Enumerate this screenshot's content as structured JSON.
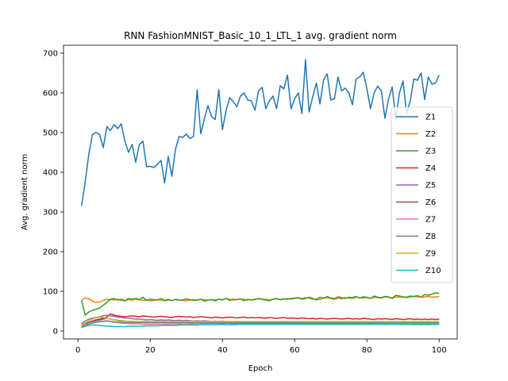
{
  "chart_data": {
    "type": "line",
    "title": "RNN FashionMNIST_Basic_10_1_LTL_1 avg. gradient norm",
    "xlabel": "Epoch",
    "ylabel": "Avg. gradient norm",
    "xlim": [
      -4,
      105
    ],
    "ylim": [
      -20,
      720
    ],
    "xticks": [
      0,
      20,
      40,
      60,
      80,
      100
    ],
    "yticks": [
      0,
      100,
      200,
      300,
      400,
      500,
      600,
      700
    ],
    "grid": false,
    "legend_position": "center-right",
    "x": [
      1,
      2,
      3,
      4,
      5,
      6,
      7,
      8,
      9,
      10,
      11,
      12,
      13,
      14,
      15,
      16,
      17,
      18,
      19,
      20,
      21,
      22,
      23,
      24,
      25,
      26,
      27,
      28,
      29,
      30,
      31,
      32,
      33,
      34,
      35,
      36,
      37,
      38,
      39,
      40,
      41,
      42,
      43,
      44,
      45,
      46,
      47,
      48,
      49,
      50,
      51,
      52,
      53,
      54,
      55,
      56,
      57,
      58,
      59,
      60,
      61,
      62,
      63,
      64,
      65,
      66,
      67,
      68,
      69,
      70,
      71,
      72,
      73,
      74,
      75,
      76,
      77,
      78,
      79,
      80,
      81,
      82,
      83,
      84,
      85,
      86,
      87,
      88,
      89,
      90,
      91,
      92,
      93,
      94,
      95,
      96,
      97,
      98,
      99,
      100
    ],
    "series": [
      {
        "name": "Z1",
        "color": "#1f77b4",
        "values": [
          315,
          375,
          445,
          495,
          500,
          495,
          462,
          515,
          505,
          520,
          510,
          522,
          478,
          450,
          470,
          425,
          470,
          478,
          414,
          415,
          412,
          420,
          430,
          373,
          440,
          390,
          458,
          490,
          488,
          496,
          485,
          490,
          608,
          497,
          535,
          568,
          540,
          533,
          608,
          507,
          555,
          588,
          578,
          565,
          592,
          600,
          582,
          580,
          556,
          605,
          614,
          560,
          580,
          592,
          560,
          618,
          610,
          645,
          560,
          585,
          600,
          548,
          684,
          552,
          590,
          625,
          572,
          632,
          648,
          582,
          585,
          640,
          605,
          612,
          600,
          570,
          635,
          640,
          652,
          610,
          560,
          600,
          617,
          605,
          536,
          585,
          615,
          533,
          600,
          630,
          548,
          580,
          635,
          632,
          650,
          583,
          640,
          622,
          625,
          645
        ]
      },
      {
        "name": "Z2",
        "color": "#ff7f0e",
        "values": [
          78,
          83,
          82,
          75,
          72,
          73,
          77,
          80,
          79,
          78,
          80,
          77,
          76,
          79,
          78,
          80,
          79,
          77,
          78,
          76,
          77,
          79,
          78,
          76,
          78,
          77,
          79,
          78,
          77,
          76,
          78,
          79,
          78,
          80,
          79,
          78,
          79,
          78,
          80,
          79,
          82,
          80,
          78,
          79,
          81,
          80,
          78,
          79,
          80,
          81,
          80,
          80,
          78,
          80,
          81,
          79,
          80,
          82,
          80,
          82,
          83,
          82,
          84,
          83,
          80,
          81,
          79,
          84,
          83,
          82,
          80,
          83,
          81,
          84,
          83,
          82,
          85,
          84,
          83,
          84,
          82,
          85,
          84,
          83,
          86,
          85,
          84,
          85,
          86,
          85,
          84,
          86,
          87,
          86,
          85,
          86,
          87,
          85,
          86,
          87
        ]
      },
      {
        "name": "Z3",
        "color": "#2ca02c",
        "values": [
          78,
          40,
          48,
          52,
          55,
          58,
          65,
          72,
          80,
          82,
          78,
          80,
          76,
          82,
          80,
          82,
          79,
          85,
          77,
          80,
          79,
          78,
          82,
          77,
          80,
          76,
          80,
          78,
          78,
          81,
          79,
          77,
          78,
          80,
          75,
          78,
          79,
          76,
          80,
          78,
          82,
          77,
          80,
          79,
          81,
          76,
          80,
          78,
          79,
          82,
          80,
          78,
          76,
          80,
          82,
          79,
          81,
          80,
          82,
          83,
          84,
          80,
          82,
          85,
          82,
          78,
          85,
          82,
          87,
          83,
          82,
          86,
          84,
          82,
          85,
          84,
          87,
          83,
          86,
          85,
          82,
          88,
          85,
          84,
          87,
          86,
          82,
          90,
          88,
          86,
          85,
          88,
          87,
          89,
          85,
          92,
          90,
          93,
          96,
          95
        ]
      },
      {
        "name": "Z4",
        "color": "#d62728",
        "values": [
          15,
          18,
          22,
          25,
          28,
          30,
          32,
          35,
          43,
          40,
          38,
          37,
          36,
          37,
          38,
          37,
          36,
          38,
          37,
          36,
          35,
          36,
          37,
          36,
          35,
          34,
          36,
          37,
          36,
          35,
          36,
          34,
          35,
          36,
          35,
          34,
          33,
          35,
          34,
          33,
          34,
          35,
          34,
          33,
          34,
          35,
          33,
          34,
          33,
          34,
          33,
          32,
          34,
          33,
          32,
          33,
          34,
          32,
          33,
          32,
          31,
          33,
          32,
          31,
          32,
          30,
          32,
          31,
          30,
          31,
          32,
          31,
          30,
          31,
          32,
          30,
          31,
          30,
          32,
          31,
          30,
          29,
          31,
          30,
          31,
          30,
          29,
          31,
          30,
          29,
          30,
          31,
          29,
          30,
          29,
          30,
          29,
          30,
          29,
          30
        ]
      },
      {
        "name": "Z5",
        "color": "#9467bd",
        "values": [
          18,
          25,
          30,
          32,
          34,
          36,
          38,
          40,
          38,
          37,
          35,
          34,
          33,
          32,
          31,
          30,
          30,
          29,
          28,
          29,
          28,
          27,
          28,
          27,
          28,
          27,
          26,
          27,
          26,
          27,
          26,
          25,
          26,
          25,
          26,
          25,
          24,
          25,
          24,
          25,
          24,
          24,
          23,
          24,
          23,
          24,
          23,
          22,
          23,
          22,
          23,
          22,
          22,
          21,
          22,
          21,
          22,
          21,
          20,
          21,
          20,
          21,
          20,
          20,
          19,
          20,
          19,
          20,
          19,
          20,
          19,
          19,
          18,
          19,
          18,
          19,
          18,
          19,
          18,
          18,
          19,
          18,
          17,
          18,
          17,
          18,
          17,
          18,
          17,
          17,
          18,
          17,
          16,
          17,
          16,
          17,
          16,
          17,
          16,
          17
        ]
      },
      {
        "name": "Z6",
        "color": "#8c564b",
        "values": [
          15,
          20,
          22,
          24,
          26,
          28,
          30,
          32,
          30,
          28,
          27,
          26,
          25,
          24,
          24,
          23,
          23,
          22,
          22,
          22,
          21,
          21,
          22,
          21,
          21,
          21,
          21,
          20,
          21,
          21,
          20,
          20,
          21,
          20,
          20,
          20,
          20,
          20,
          20,
          19,
          20,
          20,
          19,
          20,
          19,
          19,
          19,
          20,
          19,
          19,
          19,
          19,
          19,
          19,
          19,
          19,
          18,
          19,
          19,
          18,
          19,
          18,
          18,
          18,
          18,
          18,
          19,
          18,
          18,
          18,
          18,
          18,
          18,
          18,
          18,
          18,
          18,
          18,
          18,
          18,
          18,
          18,
          18,
          18,
          18,
          18,
          18,
          18,
          18,
          18,
          18,
          18,
          18,
          18,
          18,
          18,
          18,
          18,
          18,
          18
        ]
      },
      {
        "name": "Z7",
        "color": "#e377c2",
        "values": [
          12,
          16,
          18,
          20,
          22,
          24,
          25,
          26,
          24,
          22,
          21,
          20,
          19,
          19,
          18,
          18,
          18,
          17,
          17,
          17,
          17,
          17,
          17,
          17,
          17,
          17,
          17,
          17,
          17,
          17,
          17,
          17,
          17,
          17,
          17,
          17,
          17,
          17,
          17,
          17,
          17,
          17,
          17,
          17,
          17,
          17,
          17,
          17,
          17,
          17,
          17,
          17,
          17,
          17,
          17,
          17,
          17,
          17,
          17,
          17,
          17,
          17,
          17,
          17,
          17,
          17,
          17,
          17,
          17,
          17,
          17,
          17,
          17,
          17,
          17,
          17,
          17,
          17,
          17,
          17,
          17,
          17,
          17,
          17,
          17,
          17,
          17,
          17,
          17,
          17,
          17,
          17,
          17,
          17,
          17,
          17,
          17,
          17,
          17,
          17
        ]
      },
      {
        "name": "Z8",
        "color": "#7f7f7f",
        "values": [
          10,
          14,
          17,
          20,
          22,
          23,
          24,
          25,
          24,
          23,
          22,
          22,
          21,
          21,
          21,
          21,
          21,
          21,
          21,
          21,
          21,
          21,
          21,
          21,
          21,
          21,
          21,
          21,
          21,
          21,
          21,
          21,
          21,
          21,
          21,
          21,
          21,
          21,
          21,
          21,
          21,
          21,
          21,
          21,
          21,
          21,
          21,
          21,
          21,
          21,
          21,
          21,
          21,
          21,
          21,
          21,
          21,
          21,
          21,
          21,
          21,
          21,
          21,
          21,
          21,
          21,
          21,
          21,
          21,
          21,
          21,
          21,
          21,
          21,
          21,
          21,
          21,
          21,
          21,
          21,
          21,
          21,
          21,
          21,
          21,
          21,
          21,
          21,
          21,
          21,
          21,
          21,
          21,
          21,
          21,
          21,
          21,
          21,
          21,
          21
        ]
      },
      {
        "name": "Z9",
        "color": "#bcbd22",
        "values": [
          15,
          20,
          26,
          30,
          33,
          35,
          34,
          32,
          30,
          28,
          26,
          25,
          25,
          24,
          24,
          24,
          24,
          24,
          24,
          24,
          24,
          24,
          24,
          24,
          24,
          24,
          24,
          24,
          24,
          24,
          24,
          24,
          24,
          24,
          24,
          24,
          24,
          24,
          24,
          24,
          24,
          24,
          24,
          24,
          24,
          24,
          24,
          24,
          24,
          24,
          24,
          24,
          24,
          24,
          24,
          24,
          24,
          24,
          24,
          24,
          24,
          24,
          24,
          24,
          24,
          24,
          24,
          24,
          24,
          24,
          24,
          24,
          24,
          24,
          24,
          24,
          24,
          24,
          24,
          24,
          24,
          24,
          24,
          24,
          24,
          24,
          24,
          24,
          24,
          24,
          24,
          24,
          24,
          24,
          24,
          24,
          24,
          24,
          24,
          24
        ]
      },
      {
        "name": "Z10",
        "color": "#17becf",
        "values": [
          8,
          12,
          14,
          15,
          15,
          14,
          13,
          12,
          12,
          11,
          11,
          11,
          11,
          12,
          12,
          12,
          12,
          12,
          13,
          13,
          13,
          13,
          14,
          14,
          14,
          14,
          14,
          15,
          15,
          15,
          15,
          15,
          15,
          16,
          16,
          16,
          16,
          16,
          16,
          16,
          16,
          16,
          16,
          16,
          17,
          17,
          17,
          17,
          17,
          17,
          17,
          17,
          17,
          17,
          17,
          17,
          17,
          17,
          17,
          17,
          17,
          17,
          17,
          17,
          17,
          17,
          17,
          17,
          17,
          17,
          17,
          17,
          17,
          17,
          17,
          17,
          17,
          17,
          17,
          17,
          17,
          17,
          17,
          17,
          17,
          17,
          17,
          17,
          17,
          17,
          17,
          17,
          17,
          17,
          17,
          17,
          17,
          17,
          17,
          17
        ]
      }
    ]
  }
}
